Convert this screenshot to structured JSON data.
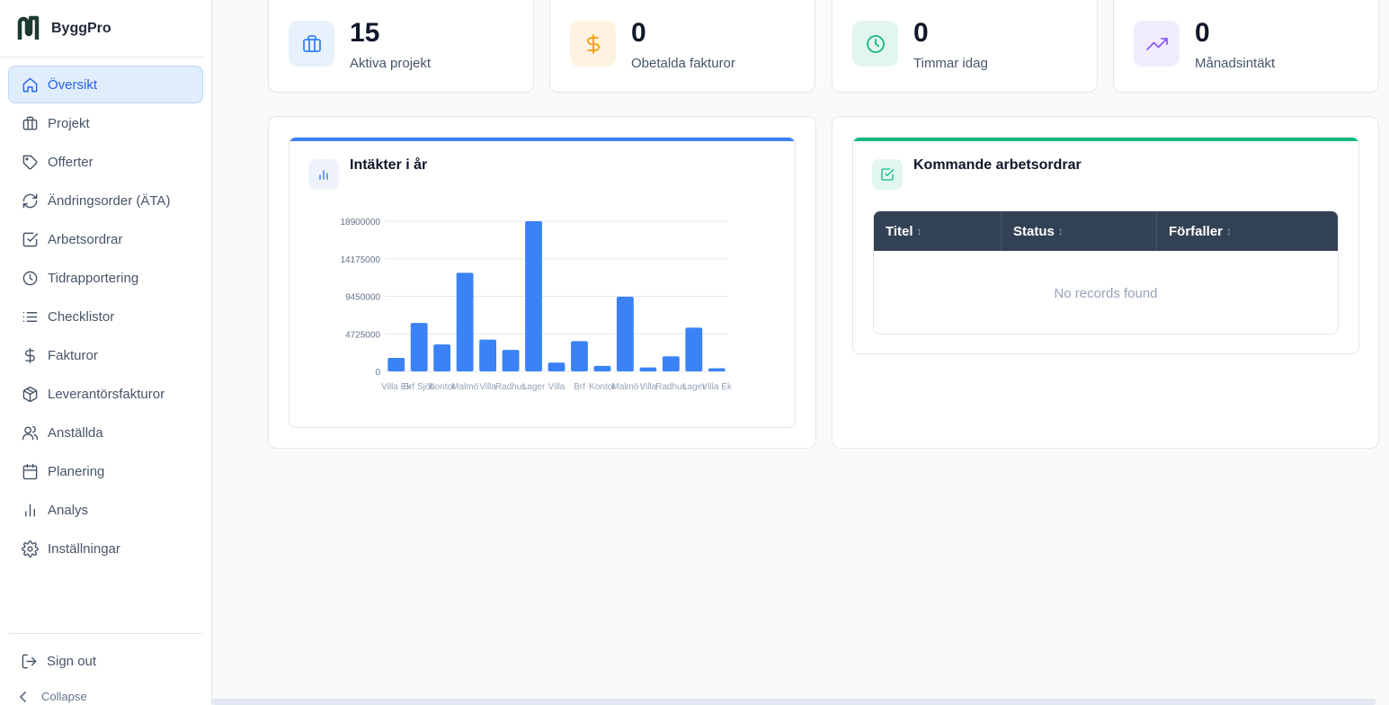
{
  "brand": {
    "name": "ByggPro"
  },
  "nav": [
    {
      "label": "Översikt",
      "icon": "home-icon",
      "active": true
    },
    {
      "label": "Projekt",
      "icon": "briefcase-icon"
    },
    {
      "label": "Offerter",
      "icon": "tag-icon"
    },
    {
      "label": "Ändringsorder (ÄTA)",
      "icon": "refresh-icon"
    },
    {
      "label": "Arbetsordrar",
      "icon": "checkbox-icon"
    },
    {
      "label": "Tidrapportering",
      "icon": "clock-icon"
    },
    {
      "label": "Checklistor",
      "icon": "list-icon"
    },
    {
      "label": "Fakturor",
      "icon": "dollar-icon"
    },
    {
      "label": "Leverantörsfakturor",
      "icon": "package-icon"
    },
    {
      "label": "Anställda",
      "icon": "users-icon"
    },
    {
      "label": "Planering",
      "icon": "calendar-icon"
    },
    {
      "label": "Analys",
      "icon": "bar-chart-icon"
    },
    {
      "label": "Inställningar",
      "icon": "gear-icon"
    }
  ],
  "footer": {
    "sign_out": "Sign out",
    "collapse": "Collapse"
  },
  "stats": [
    {
      "value": "15",
      "label": "Aktiva projekt",
      "icon": "briefcase-icon",
      "color": "#3b82f6",
      "bg": "#e8f0fc"
    },
    {
      "value": "0",
      "label": "Obetalda fakturor",
      "icon": "dollar-icon",
      "color": "#f59e0b",
      "bg": "#fef3e2"
    },
    {
      "value": "0",
      "label": "Timmar idag",
      "icon": "clock-icon",
      "color": "#10b981",
      "bg": "#e3f6ee"
    },
    {
      "value": "0",
      "label": "Månadsintäkt",
      "icon": "trending-up-icon",
      "color": "#8b5cf6",
      "bg": "#f1ecfc"
    }
  ],
  "revenue": {
    "title": "Intäkter i år",
    "accent": "#3b82f6"
  },
  "orders": {
    "title": "Kommande arbetsordrar",
    "accent": "#10b981",
    "columns": [
      "Titel",
      "Status",
      "Förfaller"
    ],
    "sort_glyph": "↕",
    "empty_text": "No records found"
  },
  "chart_data": {
    "type": "bar",
    "categories": [
      "Villa Ek",
      "Brf Sjöb",
      "Kontor",
      "Malmö",
      "Villa",
      "Radhus",
      "Lager",
      "Villa",
      "Brf",
      "Kontor",
      "Malmö",
      "Villa",
      "Radhus",
      "Lager",
      "Villa Ek"
    ],
    "values": [
      1700000,
      6100000,
      3400000,
      12400000,
      4000000,
      2700000,
      18900000,
      1100000,
      3800000,
      700000,
      9400000,
      500000,
      1900000,
      5500000,
      400000
    ],
    "y_ticks": [
      "0",
      "4725000",
      "9450000",
      "14175000",
      "18900000"
    ],
    "ylim": [
      0,
      18900000
    ],
    "bar_color": "#3b82f6",
    "grid": true,
    "title": "",
    "xlabel": "",
    "ylabel": ""
  }
}
